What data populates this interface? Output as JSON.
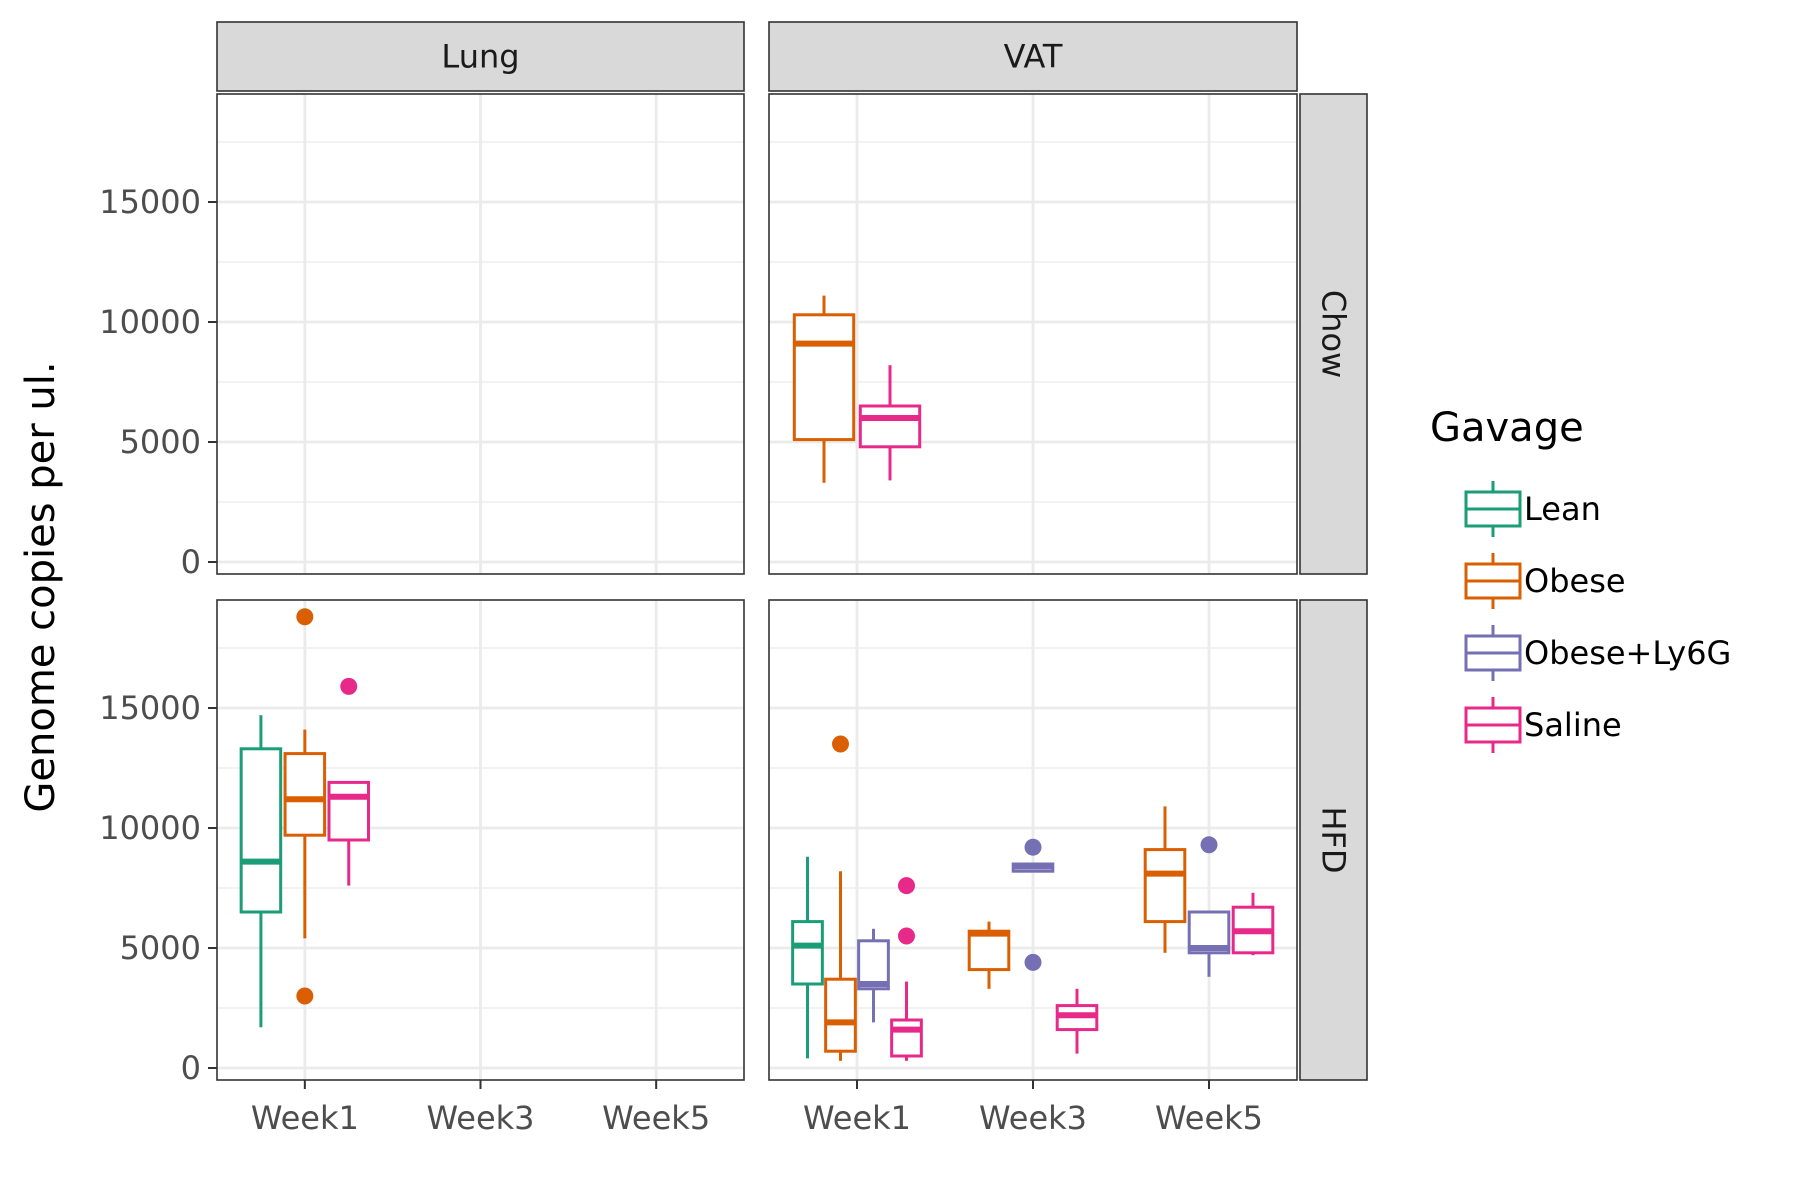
{
  "chart_data": {
    "type": "boxplot",
    "ylabel": "Genome copies per ul.",
    "xlabel": "",
    "x_categories": [
      "Week1",
      "Week3",
      "Week5"
    ],
    "ylim": [
      -500,
      19500
    ],
    "yticks": [
      0,
      5000,
      10000,
      15000
    ],
    "grid": true,
    "facet_columns": [
      "Lung",
      "VAT"
    ],
    "facet_rows": [
      "Chow",
      "HFD"
    ],
    "legend": {
      "title": "Gavage",
      "position": "right",
      "entries": [
        {
          "name": "Lean",
          "color": "#1b9e77"
        },
        {
          "name": "Obese",
          "color": "#d95f02"
        },
        {
          "name": "Obese+Ly6G",
          "color": "#7570b3"
        },
        {
          "name": "Saline",
          "color": "#e7298a"
        }
      ]
    },
    "panels": [
      {
        "column": "Lung",
        "row": "Chow",
        "boxes": []
      },
      {
        "column": "VAT",
        "row": "Chow",
        "boxes": [
          {
            "x": "Week1",
            "series": "Obese",
            "min": 3300,
            "q1": 5100,
            "median": 9100,
            "q3": 10300,
            "max": 11100,
            "outliers": []
          },
          {
            "x": "Week1",
            "series": "Saline",
            "min": 3400,
            "q1": 4800,
            "median": 6000,
            "q3": 6500,
            "max": 8200,
            "outliers": []
          }
        ]
      },
      {
        "column": "Lung",
        "row": "HFD",
        "boxes": [
          {
            "x": "Week1",
            "series": "Lean",
            "min": 1700,
            "q1": 6500,
            "median": 8600,
            "q3": 13300,
            "max": 14700,
            "outliers": []
          },
          {
            "x": "Week1",
            "series": "Obese",
            "min": 5400,
            "q1": 9700,
            "median": 11200,
            "q3": 13100,
            "max": 14100,
            "outliers": [
              18800,
              3000
            ]
          },
          {
            "x": "Week1",
            "series": "Saline",
            "min": 7600,
            "q1": 9500,
            "median": 11300,
            "q3": 11900,
            "max": 11900,
            "outliers": [
              15900
            ]
          }
        ]
      },
      {
        "column": "VAT",
        "row": "HFD",
        "boxes": [
          {
            "x": "Week1",
            "series": "Lean",
            "min": 400,
            "q1": 3500,
            "median": 5100,
            "q3": 6100,
            "max": 8800,
            "outliers": []
          },
          {
            "x": "Week1",
            "series": "Obese",
            "min": 300,
            "q1": 700,
            "median": 1900,
            "q3": 3700,
            "max": 8200,
            "outliers": [
              13500
            ]
          },
          {
            "x": "Week1",
            "series": "Obese+Ly6G",
            "min": 1900,
            "q1": 3300,
            "median": 3500,
            "q3": 5300,
            "max": 5800,
            "outliers": []
          },
          {
            "x": "Week1",
            "series": "Saline",
            "min": 300,
            "q1": 500,
            "median": 1600,
            "q3": 2000,
            "max": 3600,
            "outliers": [
              7600,
              5500
            ]
          },
          {
            "x": "Week3",
            "series": "Obese",
            "min": 3300,
            "q1": 4100,
            "median": 5600,
            "q3": 5700,
            "max": 6100,
            "outliers": []
          },
          {
            "x": "Week3",
            "series": "Obese+Ly6G",
            "min": 8200,
            "q1": 8200,
            "median": 8400,
            "q3": 8500,
            "max": 8500,
            "outliers": [
              9200,
              4400
            ]
          },
          {
            "x": "Week3",
            "series": "Saline",
            "min": 600,
            "q1": 1600,
            "median": 2200,
            "q3": 2600,
            "max": 3300,
            "outliers": []
          },
          {
            "x": "Week5",
            "series": "Obese",
            "min": 4800,
            "q1": 6100,
            "median": 8100,
            "q3": 9100,
            "max": 10900,
            "outliers": []
          },
          {
            "x": "Week5",
            "series": "Obese+Ly6G",
            "min": 3800,
            "q1": 4800,
            "median": 5000,
            "q3": 6500,
            "max": 6500,
            "outliers": [
              9300
            ]
          },
          {
            "x": "Week5",
            "series": "Saline",
            "min": 4700,
            "q1": 4800,
            "median": 5700,
            "q3": 6700,
            "max": 7300,
            "outliers": []
          }
        ]
      }
    ]
  }
}
